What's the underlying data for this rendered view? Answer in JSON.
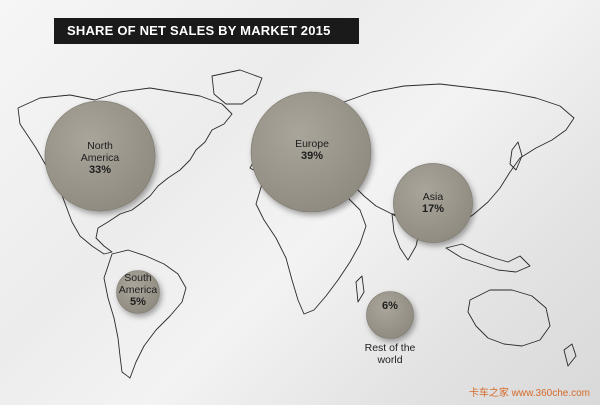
{
  "chart_data": {
    "type": "bubble",
    "title": "SHARE OF NET SALES BY MARKET 2015",
    "unit": "%",
    "series": [
      {
        "name": "North America",
        "label_lines": [
          "North",
          "America"
        ],
        "value": 33,
        "value_text": "33%"
      },
      {
        "name": "Europe",
        "label_lines": [
          "Europe"
        ],
        "value": 39,
        "value_text": "39%"
      },
      {
        "name": "Asia",
        "label_lines": [
          "Asia"
        ],
        "value": 17,
        "value_text": "17%"
      },
      {
        "name": "South America",
        "label_lines": [
          "South",
          "America"
        ],
        "value": 5,
        "value_text": "5%"
      },
      {
        "name": "Rest of the world",
        "label_lines": [
          "Rest of the",
          "world"
        ],
        "value": 6,
        "value_text": "6%"
      }
    ],
    "colors": {
      "bubble": "#9c978d",
      "bubble_edge": "#7d786f",
      "map_outline": "#2a2a2a",
      "title_bg": "#1a1a1a"
    }
  },
  "watermark": "卡车之家 www.360che.com"
}
